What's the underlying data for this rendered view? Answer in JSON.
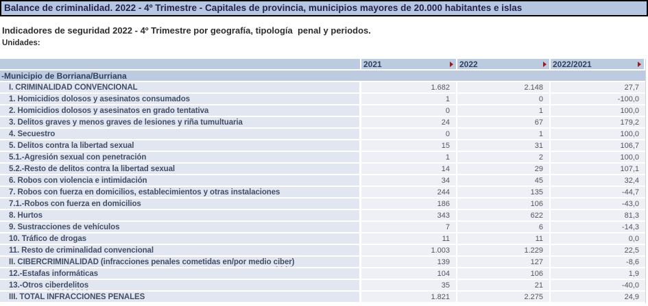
{
  "title_bar": {
    "text": "Balance de criminalidad. 2022 - 4º Trimestre - Capitales de provincia, municipios mayores de 20.000 habitantes e islas"
  },
  "heading": "Indicadores de seguridad 2022 - 4º Trimestre por geografía, tipología  penal y periodos.",
  "units_label": "Unidades:",
  "colors": {
    "title_bar_bg": "#b6c5e0",
    "header_bg": "#bccbdf",
    "label_cell_bg": "#e2e6f0",
    "value_cell_bg": "#eef0f6",
    "header_text": "#31405c",
    "sort_arrow": "#8e2323",
    "spellcheck_underline": "#e8442e"
  },
  "icons": {
    "sort_arrow": "right-triangle"
  },
  "table": {
    "columns": [
      "",
      "2021",
      "2022",
      "2022/2021"
    ],
    "group_row_label": "-Municipio de Borriana/Burriana",
    "rows": [
      {
        "label": "I. CRIMINALIDAD CONVENCIONAL",
        "v2021": "1.682",
        "v2022": "2.148",
        "pct": "27,7"
      },
      {
        "label": "1. Homicidios dolosos y asesinatos consumados",
        "v2021": "1",
        "v2022": "0",
        "pct": "-100,0"
      },
      {
        "label": "2. Homicidios dolosos y asesinatos en grado tentativa",
        "v2021": "0",
        "v2022": "1",
        "pct": "100,0"
      },
      {
        "label": "3. Delitos graves y menos graves de lesiones y riña tumultuaria",
        "v2021": "24",
        "v2022": "67",
        "pct": "179,2"
      },
      {
        "label": "4. Secuestro",
        "v2021": "0",
        "v2022": "1",
        "pct": "100,0"
      },
      {
        "label": "5. Delitos contra la libertad sexual",
        "v2021": "15",
        "v2022": "31",
        "pct": "106,7"
      },
      {
        "label": "5.1.-Agresión sexual con penetración",
        "v2021": "1",
        "v2022": "2",
        "pct": "100,0"
      },
      {
        "label": "5.2.-Resto de delitos contra la libertad sexual",
        "v2021": "14",
        "v2022": "29",
        "pct": "107,1"
      },
      {
        "label": "6. Robos con violencia e intimidación",
        "v2021": "34",
        "v2022": "45",
        "pct": "32,4"
      },
      {
        "label": "7. Robos con fuerza en domicilios, establecimientos y otras instalaciones",
        "v2021": "244",
        "v2022": "135",
        "pct": "-44,7"
      },
      {
        "label": "7.1.-Robos con fuerza en domicilios",
        "v2021": "186",
        "v2022": "106",
        "pct": "-43,0"
      },
      {
        "label": "8. Hurtos",
        "v2021": "343",
        "v2022": "622",
        "pct": "81,3"
      },
      {
        "label": "9. Sustracciones de vehículos",
        "v2021": "7",
        "v2022": "6",
        "pct": "-14,3"
      },
      {
        "label": "10. Tráfico de drogas",
        "v2021": "11",
        "v2022": "11",
        "pct": "0,0"
      },
      {
        "label": "11. Resto de criminalidad convencional",
        "v2021": "1.003",
        "v2022": "1.229",
        "pct": "22,5"
      },
      {
        "label_pre": "II. CIBERCRIMINALIDAD (infracciones penales cometidas en/por medio ",
        "label_misspelled": "ciber",
        "label_post": ")",
        "v2021": "139",
        "v2022": "127",
        "pct": "-8,6"
      },
      {
        "label": "12.-Estafas informáticas",
        "v2021": "104",
        "v2022": "106",
        "pct": "1,9"
      },
      {
        "label_pre": "13.-Otros ",
        "label_misspelled": "ciberdelitos",
        "label_post": "",
        "v2021": "35",
        "v2022": "21",
        "pct": "-40,0"
      },
      {
        "label": "III. TOTAL INFRACCIONES PENALES",
        "v2021": "1.821",
        "v2022": "2.275",
        "pct": "24,9"
      }
    ]
  }
}
